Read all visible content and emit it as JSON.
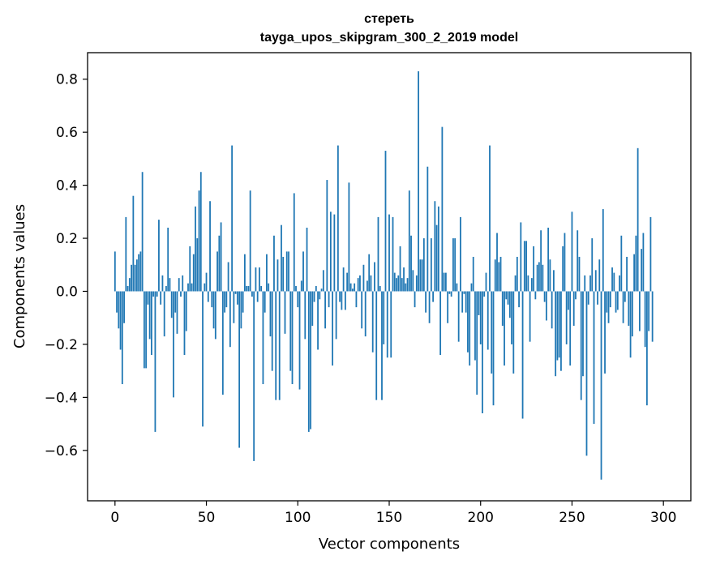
{
  "chart_data": {
    "type": "bar",
    "title": "стереть",
    "subtitle": "tayga_upos_skipgram_300_2_2019 model",
    "xlabel": "Vector components",
    "ylabel": "Components values",
    "xlim": [
      -15,
      315
    ],
    "ylim": [
      -0.79,
      0.9
    ],
    "xticks": [
      0,
      50,
      100,
      150,
      200,
      250,
      300
    ],
    "yticks": [
      -0.6,
      -0.4,
      -0.2,
      0.0,
      0.2,
      0.4,
      0.6,
      0.8
    ],
    "ytick_labels": [
      "−0.6",
      "−0.4",
      "−0.2",
      "0.0",
      "0.2",
      "0.4",
      "0.6",
      "0.8"
    ],
    "bar_color": "#1f77b4",
    "values": [
      0.15,
      -0.08,
      -0.14,
      -0.22,
      -0.35,
      -0.12,
      0.28,
      0.02,
      0.05,
      0.1,
      0.36,
      0.1,
      0.12,
      0.14,
      0.15,
      0.45,
      -0.29,
      -0.29,
      -0.05,
      -0.18,
      -0.24,
      -0.02,
      -0.53,
      -0.02,
      0.27,
      -0.05,
      0.06,
      -0.17,
      0.02,
      0.24,
      0.05,
      -0.1,
      -0.4,
      -0.08,
      -0.16,
      0.05,
      -0.02,
      0.06,
      -0.24,
      -0.15,
      0.03,
      0.17,
      0.03,
      0.14,
      0.32,
      0.2,
      0.38,
      0.45,
      -0.51,
      0.03,
      0.07,
      -0.04,
      0.34,
      -0.06,
      -0.14,
      -0.18,
      0.15,
      0.21,
      0.26,
      -0.39,
      -0.08,
      -0.06,
      0.11,
      -0.21,
      0.55,
      -0.12,
      -0.01,
      -0.05,
      -0.59,
      -0.14,
      -0.08,
      0.14,
      0.02,
      0.02,
      0.38,
      -0.02,
      -0.64,
      0.09,
      -0.04,
      0.09,
      0.02,
      -0.35,
      -0.08,
      0.14,
      0.03,
      -0.17,
      -0.3,
      0.21,
      -0.41,
      0.12,
      -0.41,
      0.25,
      0.13,
      -0.16,
      0.15,
      0.15,
      -0.3,
      -0.35,
      0.37,
      0.02,
      -0.06,
      -0.37,
      0.04,
      0.15,
      -0.18,
      0.24,
      -0.53,
      -0.52,
      -0.13,
      -0.04,
      0.02,
      -0.22,
      -0.03,
      0.01,
      0.08,
      -0.14,
      0.42,
      -0.06,
      0.3,
      -0.28,
      0.29,
      -0.18,
      0.55,
      -0.04,
      -0.07,
      0.09,
      -0.07,
      0.07,
      0.41,
      0.03,
      0.01,
      0.03,
      -0.06,
      0.05,
      0.06,
      -0.14,
      0.1,
      -0.17,
      0.04,
      0.14,
      0.06,
      -0.23,
      0.11,
      -0.41,
      0.28,
      0.02,
      -0.41,
      -0.2,
      0.53,
      -0.25,
      0.29,
      -0.25,
      0.28,
      0.07,
      0.05,
      0.06,
      0.17,
      0.05,
      0.09,
      0.03,
      0.05,
      0.38,
      0.21,
      0.08,
      -0.06,
      0.06,
      0.83,
      0.12,
      0.12,
      0.2,
      -0.08,
      0.47,
      -0.12,
      0.2,
      -0.04,
      0.34,
      0.25,
      0.32,
      -0.24,
      0.62,
      0.07,
      0.07,
      -0.12,
      -0.01,
      -0.02,
      0.2,
      0.2,
      0.03,
      -0.19,
      0.28,
      -0.08,
      -0.01,
      -0.08,
      -0.23,
      -0.28,
      0.03,
      0.13,
      -0.26,
      -0.39,
      -0.09,
      -0.2,
      -0.46,
      -0.02,
      0.07,
      -0.22,
      0.55,
      -0.31,
      -0.43,
      0.12,
      0.22,
      0.11,
      0.13,
      -0.13,
      -0.28,
      -0.03,
      -0.05,
      -0.1,
      -0.2,
      -0.31,
      0.06,
      0.13,
      -0.06,
      0.26,
      -0.48,
      0.19,
      0.19,
      0.06,
      -0.19,
      0.05,
      0.17,
      -0.03,
      0.1,
      0.11,
      0.23,
      0.1,
      -0.04,
      -0.11,
      0.24,
      0.12,
      -0.14,
      0.08,
      -0.32,
      -0.26,
      -0.25,
      -0.3,
      0.17,
      0.22,
      -0.2,
      -0.07,
      -0.28,
      0.3,
      -0.13,
      -0.03,
      0.23,
      0.13,
      -0.41,
      -0.32,
      0.06,
      -0.62,
      -0.05,
      0.06,
      0.2,
      -0.5,
      0.08,
      -0.05,
      0.12,
      -0.71,
      0.31,
      -0.31,
      -0.08,
      -0.12,
      -0.06,
      0.09,
      0.07,
      -0.08,
      -0.07,
      0.06,
      0.21,
      -0.12,
      -0.04,
      0.13,
      -0.13,
      -0.25,
      -0.17,
      0.14,
      0.21,
      0.54,
      -0.15,
      0.16,
      0.22,
      -0.21,
      -0.43,
      -0.15,
      0.28,
      -0.19
    ]
  }
}
